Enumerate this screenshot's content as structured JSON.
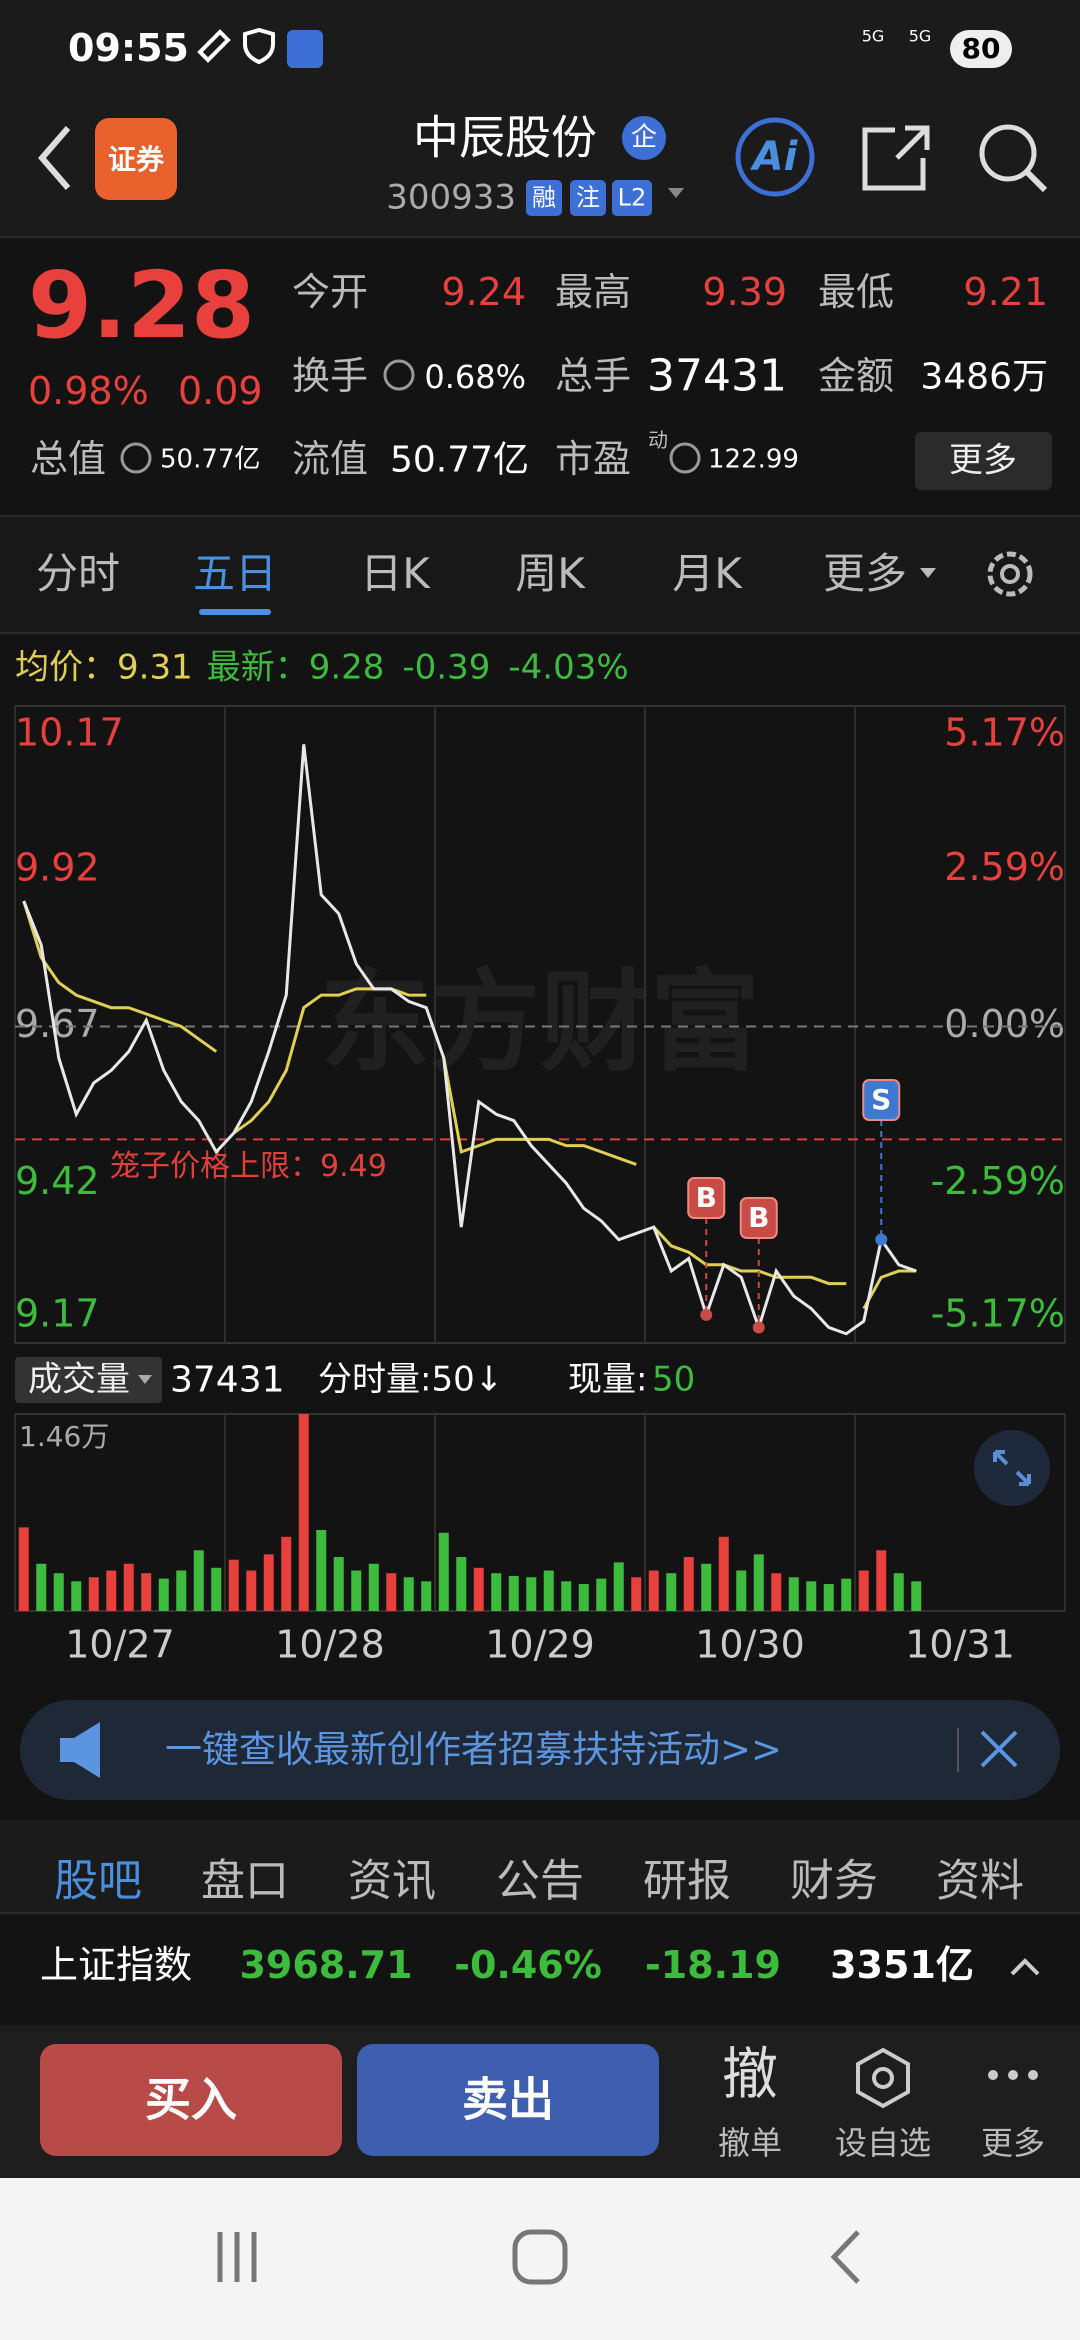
{
  "status_bar": {
    "time": "09:55",
    "network": [
      "5G",
      "5G"
    ],
    "battery": "80"
  },
  "header": {
    "logo": "证券",
    "title": "中辰股份",
    "badge": "企",
    "code": "300933",
    "tags": [
      "融",
      "注",
      "L2"
    ],
    "ai": "Ai"
  },
  "quote": {
    "price": "9.28",
    "change_pct": "0.98%",
    "change": "0.09",
    "fields": [
      {
        "label": "今开",
        "value": "9.24"
      },
      {
        "label": "最高",
        "value": "9.39"
      },
      {
        "label": "最低",
        "value": "9.21"
      },
      {
        "label": "换手",
        "value": "0.68%"
      },
      {
        "label": "总手",
        "value": "37431"
      },
      {
        "label": "金额",
        "value": "3486万"
      },
      {
        "label": "总值",
        "value": "50.77亿"
      },
      {
        "label": "流值",
        "value": "50.77亿"
      },
      {
        "label": "市盈",
        "value": "122.99",
        "superscript": "动"
      }
    ],
    "more": "更多"
  },
  "tabs": {
    "items": [
      "分时",
      "五日",
      "日K",
      "周K",
      "月K",
      "更多"
    ],
    "active": 1
  },
  "info": {
    "avg_label": "均价：",
    "avg": "9.31",
    "last_label": "最新：",
    "last": "9.28",
    "change": "-0.39",
    "change_pct": "-4.03%"
  },
  "chart_data": [
    {
      "type": "line",
      "ylim": [
        9.17,
        10.17
      ],
      "yticks": [
        10.17,
        9.92,
        9.67,
        9.42,
        9.17
      ],
      "y2lim": [
        -5.17,
        5.17
      ],
      "y2ticks": [
        {
          "value": 5.17,
          "label": "5.17%"
        },
        {
          "value": 2.59,
          "label": "2.59%"
        },
        {
          "value": 0,
          "label": "0.00%"
        },
        {
          "value": -2.59,
          "label": "-2.59%"
        },
        {
          "value": -5.17,
          "label": "-5.17%"
        }
      ],
      "series": [
        {
          "color": "#e8e8e8",
          "values": [
            9.87,
            9.8,
            9.62,
            9.53,
            9.58,
            9.6,
            9.63,
            9.68,
            9.6,
            9.55,
            9.52,
            9.47,
            9.5,
            9.55,
            9.63,
            9.72,
            10.12,
            9.88,
            9.85,
            9.77,
            9.73,
            9.73,
            9.71,
            9.7,
            9.62,
            9.35,
            9.55,
            9.53,
            9.52,
            9.48,
            9.45,
            9.42,
            9.38,
            9.36,
            9.33,
            9.34,
            9.35,
            9.28,
            9.3,
            9.21,
            9.29,
            9.27,
            9.19,
            9.28,
            9.24,
            9.22,
            9.19,
            9.18,
            9.2,
            9.33,
            9.29,
            9.28
          ]
        },
        {
          "color": "#e0cf55",
          "values": [
            9.87,
            9.78,
            9.74,
            9.72,
            9.71,
            9.7,
            9.7,
            9.69,
            9.68,
            9.67,
            9.65,
            9.63,
            9.5,
            9.52,
            9.55,
            9.6,
            9.7,
            9.72,
            9.72,
            9.73,
            9.73,
            9.73,
            9.72,
            9.72,
            9.62,
            9.47,
            9.48,
            9.49,
            9.49,
            9.49,
            9.49,
            9.48,
            9.48,
            9.47,
            9.46,
            9.45,
            9.35,
            9.32,
            9.31,
            9.29,
            9.29,
            9.28,
            9.28,
            9.27,
            9.27,
            9.27,
            9.26,
            9.26,
            9.22,
            9.27,
            9.28,
            9.28
          ]
        }
      ],
      "annotation": {
        "text": "笼子价格上限：9.49",
        "value": 9.49,
        "color": "#e0403a"
      },
      "trade_markers": [
        "B",
        "B",
        "S"
      ],
      "watermark": "东方财富",
      "days": [
        "10/27",
        "10/28",
        "10/29",
        "10/30",
        "10/31"
      ],
      "up_color": "#e8403c",
      "down_color": "#3dbb3d"
    },
    {
      "type": "bar",
      "selector": "成交量",
      "total": "37431",
      "per_minute": "分时量:50↓",
      "current_label": "现量:",
      "current": "50",
      "ylim": [
        0,
        1.46
      ],
      "yticks": [
        {
          "value": 1.46,
          "label": "1.46万"
        }
      ],
      "values": [
        0.62,
        0.35,
        0.28,
        0.22,
        0.25,
        0.3,
        0.35,
        0.28,
        0.24,
        0.3,
        0.45,
        0.32,
        0.38,
        0.3,
        0.42,
        0.55,
        1.46,
        0.6,
        0.4,
        0.3,
        0.35,
        0.28,
        0.25,
        0.22,
        0.58,
        0.4,
        0.32,
        0.28,
        0.26,
        0.25,
        0.3,
        0.22,
        0.2,
        0.24,
        0.36,
        0.25,
        0.3,
        0.28,
        0.4,
        0.35,
        0.55,
        0.3,
        0.42,
        0.28,
        0.25,
        0.22,
        0.2,
        0.24,
        0.3,
        0.45,
        0.28,
        0.22
      ]
    }
  ],
  "banner": {
    "text": "一键查收最新创作者招募扶持活动>>"
  },
  "bottom_tabs": {
    "items": [
      "股吧",
      "盘口",
      "资讯",
      "公告",
      "研报",
      "财务",
      "资料"
    ],
    "active": 0
  },
  "index_bar": {
    "name": "上证指数",
    "value": "3968.71",
    "change_pct": "-0.46%",
    "change": "-18.19",
    "turnover": "3351亿"
  },
  "actions": {
    "buy": "买入",
    "sell": "卖出",
    "cancel_icon": "撤",
    "cancel": "撤单",
    "watchlist": "设自选",
    "more": "更多"
  }
}
